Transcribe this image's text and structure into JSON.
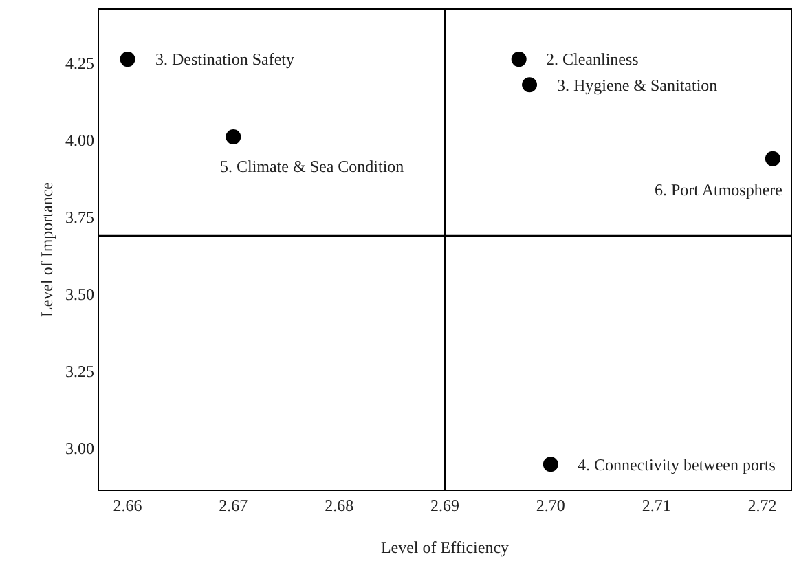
{
  "chart_data": {
    "type": "scatter",
    "xlabel": "Level of Efficiency",
    "ylabel": "Level of Importance",
    "x": [
      2.66,
      2.67,
      2.697,
      2.698,
      2.721,
      2.7
    ],
    "series": [
      {
        "color": "#000000",
        "values": [
          4.263,
          4.011,
          4.263,
          4.18,
          3.94,
          2.948
        ]
      }
    ],
    "marker": "circle",
    "legend": false,
    "grid": false,
    "xlim": [
      2.6573,
      2.7227
    ],
    "xticks": [
      {
        "value": 2.66,
        "label": "2.66"
      },
      {
        "value": 2.67,
        "label": "2.67"
      },
      {
        "value": 2.68,
        "label": "2.68"
      },
      {
        "value": 2.69,
        "label": "2.69"
      },
      {
        "value": 2.7,
        "label": "2.70"
      },
      {
        "value": 2.71,
        "label": "2.71"
      },
      {
        "value": 2.72,
        "label": "2.72"
      }
    ],
    "ylim": [
      2.866,
      4.424
    ],
    "yticks": [
      {
        "value": 3,
        "label": "3.00"
      },
      {
        "value": 3.25,
        "label": "3.25"
      },
      {
        "value": 3.5,
        "label": "3.50"
      },
      {
        "value": 3.75,
        "label": "3.75"
      },
      {
        "value": 4,
        "label": "4.00"
      },
      {
        "value": 4.25,
        "label": "4.25"
      }
    ],
    "ref_lines": [
      {
        "axis": "x",
        "value": 2.69,
        "color": "#000000"
      },
      {
        "axis": "y",
        "value": 3.69,
        "color": "#000000"
      }
    ],
    "annotations": [
      {
        "text": "3. Destination Safety",
        "x": 2.66,
        "y": 4.263
      },
      {
        "text": "5. Climate & Sea Condition",
        "x": 2.67,
        "y": 4.011
      },
      {
        "text": "2. Cleanliness",
        "x": 2.697,
        "y": 4.263
      },
      {
        "text": "3. Hygiene & Sanitation",
        "x": 2.698,
        "y": 4.18
      },
      {
        "text": "6. Port Atmosphere",
        "x": 2.721,
        "y": 3.94
      },
      {
        "text": "4. Connectivity between ports",
        "x": 2.7,
        "y": 2.948
      }
    ]
  }
}
